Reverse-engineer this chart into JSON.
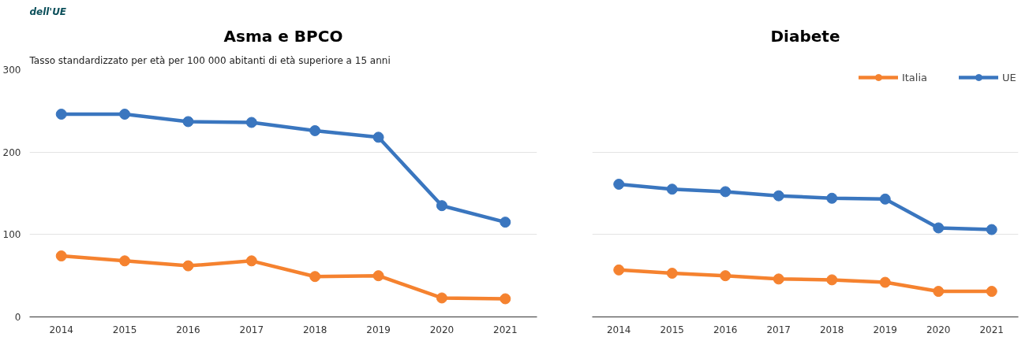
{
  "chart_data": [
    {
      "type": "line",
      "title": "Asma e BPCO",
      "subtitle": "Tasso standardizzato per età per 100 000 abitanti di età superiore a 15 anni",
      "annotations": [
        "dell'UE"
      ],
      "categories": [
        "2014",
        "2015",
        "2016",
        "2017",
        "2018",
        "2019",
        "2020",
        "2021"
      ],
      "series": [
        {
          "color": "#f5822f",
          "values": [
            74,
            68,
            62,
            68,
            49,
            50,
            23,
            22
          ]
        },
        {
          "color": "#3a76bf",
          "values": [
            246,
            246,
            237,
            236,
            226,
            218,
            135,
            115
          ]
        }
      ],
      "ylim": [
        0,
        300
      ],
      "yticks": [
        0,
        100,
        200,
        300
      ],
      "grid": "y",
      "marker": "circle",
      "legend": false
    },
    {
      "type": "line",
      "title": "Diabete",
      "categories": [
        "2014",
        "2015",
        "2016",
        "2017",
        "2018",
        "2019",
        "2020",
        "2021"
      ],
      "series": [
        {
          "name": "Italia",
          "color": "#f5822f",
          "values": [
            57,
            53,
            50,
            46,
            45,
            42,
            31,
            31
          ]
        },
        {
          "name": "UE",
          "color": "#3a76bf",
          "values": [
            161,
            155,
            152,
            147,
            144,
            143,
            108,
            106
          ]
        }
      ],
      "ylim": [
        0,
        300
      ],
      "yticks": [
        0,
        100,
        200,
        300
      ],
      "grid": "y",
      "marker": "circle",
      "legend": "top right",
      "tick_labels": "x"
    }
  ]
}
